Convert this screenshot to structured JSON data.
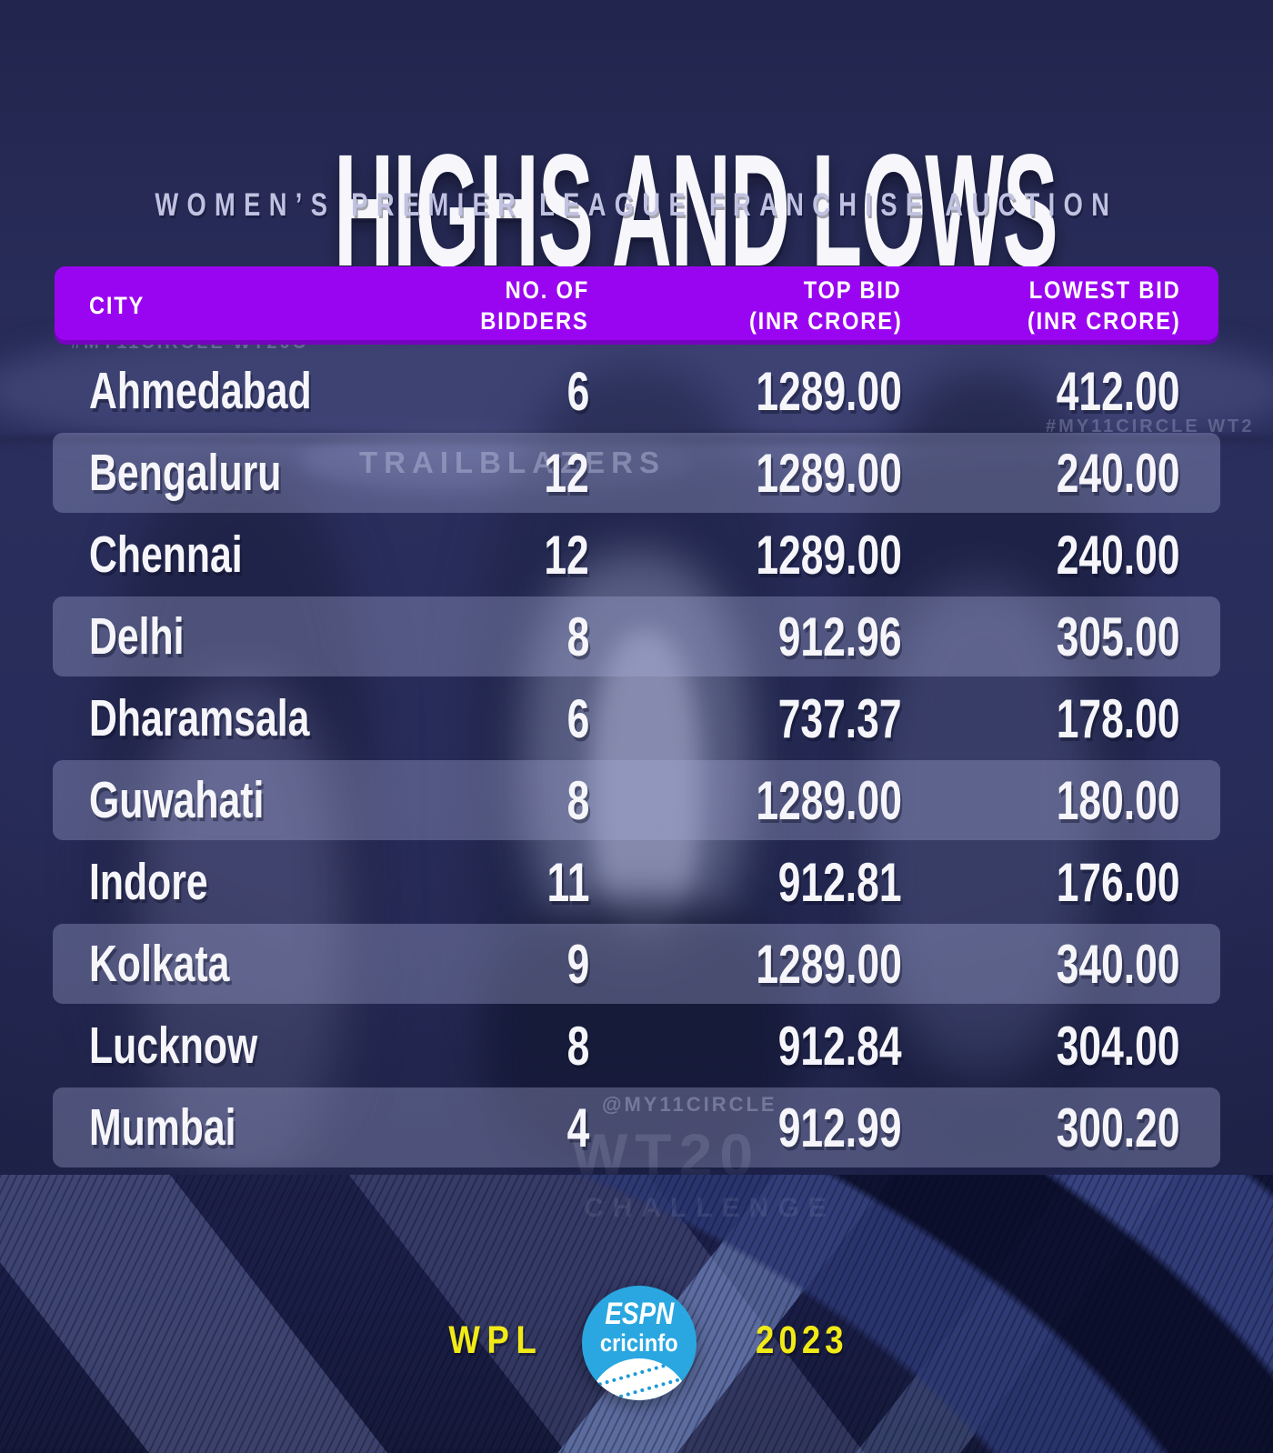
{
  "header": {
    "title": "HIGHS AND LOWS",
    "subtitle": "WOMEN’S PREMIER LEAGUE FRANCHISE AUCTION"
  },
  "table": {
    "columns": [
      {
        "label": "CITY"
      },
      {
        "line1": "NO. OF",
        "line2": "BIDDERS"
      },
      {
        "line1": "TOP BID",
        "line2": "(INR CRORE)"
      },
      {
        "line1": "LOWEST BID",
        "line2": "(INR CRORE)"
      }
    ],
    "rows": [
      {
        "city": "Ahmedabad",
        "bidders": "6",
        "top_bid": "1289.00",
        "lowest_bid": "412.00"
      },
      {
        "city": "Bengaluru",
        "bidders": "12",
        "top_bid": "1289.00",
        "lowest_bid": "240.00"
      },
      {
        "city": "Chennai",
        "bidders": "12",
        "top_bid": "1289.00",
        "lowest_bid": "240.00"
      },
      {
        "city": "Delhi",
        "bidders": "8",
        "top_bid": "912.96",
        "lowest_bid": "305.00"
      },
      {
        "city": "Dharamsala",
        "bidders": "6",
        "top_bid": "737.37",
        "lowest_bid": "178.00"
      },
      {
        "city": "Guwahati",
        "bidders": "8",
        "top_bid": "1289.00",
        "lowest_bid": "180.00"
      },
      {
        "city": "Indore",
        "bidders": "11",
        "top_bid": "912.81",
        "lowest_bid": "176.00"
      },
      {
        "city": "Kolkata",
        "bidders": "9",
        "top_bid": "1289.00",
        "lowest_bid": "340.00"
      },
      {
        "city": "Lucknow",
        "bidders": "8",
        "top_bid": "912.84",
        "lowest_bid": "304.00"
      },
      {
        "city": "Mumbai",
        "bidders": "4",
        "top_bid": "912.99",
        "lowest_bid": "300.20"
      }
    ]
  },
  "footer": {
    "left_label": "WPL",
    "right_label": "2023",
    "logo": {
      "line1": "ESPN",
      "line2": "cricinfo"
    }
  },
  "background": {
    "photo_texts": [
      {
        "text": "#MY11CIRCLE WT20C"
      },
      {
        "text": "TRAILBLAZERS"
      },
      {
        "text": "#MY11CIRCLE WT2"
      },
      {
        "text": "@MY11CIRCLE"
      },
      {
        "text": "WT20"
      },
      {
        "text": "CHALLENGE"
      }
    ]
  },
  "colors": {
    "header_bar_purple": "#9a05f1",
    "accent_yellow": "#f2ea16",
    "logo_blue": "#2aa7e0",
    "background_navy": "#23264f",
    "row_highlight": "rgba(167,172,216,0.35)",
    "text_white": "#f5f5fa",
    "subtitle_lavender": "#c1c2e1"
  },
  "chart_data": {
    "type": "table",
    "title": "HIGHS AND LOWS",
    "subtitle": "WOMEN’S PREMIER LEAGUE FRANCHISE AUCTION",
    "columns": [
      "CITY",
      "NO. OF BIDDERS",
      "TOP BID (INR CRORE)",
      "LOWEST BID (INR CRORE)"
    ],
    "rows": [
      [
        "Ahmedabad",
        6,
        1289.0,
        412.0
      ],
      [
        "Bengaluru",
        12,
        1289.0,
        240.0
      ],
      [
        "Chennai",
        12,
        1289.0,
        240.0
      ],
      [
        "Delhi",
        8,
        912.96,
        305.0
      ],
      [
        "Dharamsala",
        6,
        737.37,
        178.0
      ],
      [
        "Guwahati",
        8,
        1289.0,
        180.0
      ],
      [
        "Indore",
        11,
        912.81,
        176.0
      ],
      [
        "Kolkata",
        9,
        1289.0,
        340.0
      ],
      [
        "Lucknow",
        8,
        912.84,
        304.0
      ],
      [
        "Mumbai",
        4,
        912.99,
        300.2
      ]
    ],
    "footer_labels": [
      "WPL",
      "ESPN cricinfo",
      "2023"
    ]
  }
}
